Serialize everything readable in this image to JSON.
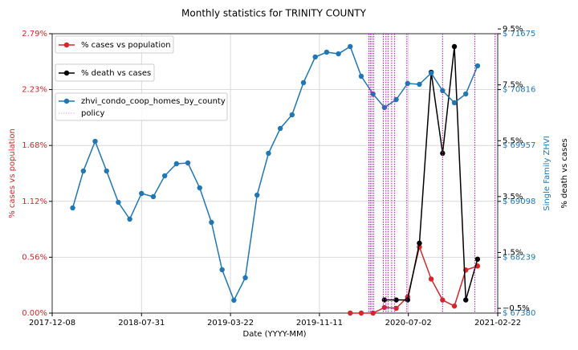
{
  "chart_data": {
    "type": "line",
    "title": "Monthly statistics for TRINITY COUNTY",
    "x_label": "Date (YYYY-MM)",
    "y_label": "% cases vs population",
    "y2_label": "Single Family ZHVI",
    "y3_label": "% death vs cases",
    "xlim": [
      "2017-12-08",
      "2021-02-22"
    ],
    "xticks": [
      "2017-12-08",
      "2018-07-31",
      "2019-03-22",
      "2019-11-11",
      "2020-07-02",
      "2021-02-22"
    ],
    "ylim": [
      0,
      2.79
    ],
    "yticks": [
      {
        "value": 0,
        "label": "0.00%"
      },
      {
        "value": 0.558,
        "label": "0.56%"
      },
      {
        "value": 1.116,
        "label": "1.12%"
      },
      {
        "value": 1.674,
        "label": "1.68%"
      },
      {
        "value": 2.232,
        "label": "2.23%"
      },
      {
        "value": 2.79,
        "label": "2.79%"
      }
    ],
    "y2lim": [
      67380,
      71675
    ],
    "y2ticks": [
      {
        "value": 67380,
        "label": "$ 67380"
      },
      {
        "value": 68239,
        "label": "$ 68239"
      },
      {
        "value": 69098,
        "label": "$ 69098"
      },
      {
        "value": 69957,
        "label": "$ 69957"
      },
      {
        "value": 70816,
        "label": "$ 70816"
      },
      {
        "value": 71675,
        "label": "$ 71675"
      }
    ],
    "y3lim": [
      -0.67,
      9.33
    ],
    "y3ticks": [
      {
        "value": -0.5,
        "label": "−0.5%"
      },
      {
        "value": 1.5,
        "label": "1.5%"
      },
      {
        "value": 3.5,
        "label": "3.5%"
      },
      {
        "value": 5.5,
        "label": "5.5%"
      },
      {
        "value": 7.5,
        "label": "7.5%"
      },
      {
        "value": 9.5,
        "label": "9.5%"
      }
    ],
    "grid": true,
    "series": [
      {
        "name": "% cases vs population",
        "color": "#d62728",
        "axis": "y",
        "x": [
          "2020-01-31",
          "2020-02-29",
          "2020-03-31",
          "2020-04-30",
          "2020-05-31",
          "2020-06-30",
          "2020-07-31",
          "2020-08-31",
          "2020-09-30",
          "2020-10-31",
          "2020-11-30",
          "2020-12-31"
        ],
        "values": [
          0,
          0,
          0,
          0.056,
          0.048,
          0.16,
          0.66,
          0.34,
          0.13,
          0.07,
          0.43,
          0.47
        ]
      },
      {
        "name": "% death vs cases",
        "color": "#000000",
        "axis": "y3",
        "x": [
          "2020-04-30",
          "2020-05-31",
          "2020-06-30",
          "2020-07-31",
          "2020-08-31",
          "2020-09-30",
          "2020-10-31",
          "2020-11-30",
          "2020-12-31"
        ],
        "values": [
          -0.2,
          -0.2,
          -0.2,
          1.83,
          7.95,
          5.05,
          8.87,
          -0.2,
          1.26
        ]
      },
      {
        "name": "zhvi_condo_coop_homes_by_county",
        "color": "#1f77b4",
        "axis": "y2",
        "x": [
          "2018-01-31",
          "2018-02-28",
          "2018-03-31",
          "2018-04-30",
          "2018-05-31",
          "2018-06-30",
          "2018-07-31",
          "2018-08-31",
          "2018-09-30",
          "2018-10-31",
          "2018-11-30",
          "2018-12-31",
          "2019-01-31",
          "2019-02-28",
          "2019-03-31",
          "2019-04-30",
          "2019-05-31",
          "2019-06-30",
          "2019-07-31",
          "2019-08-31",
          "2019-09-30",
          "2019-10-31",
          "2019-11-30",
          "2019-12-31",
          "2020-01-31",
          "2020-02-29",
          "2020-03-31",
          "2020-04-30",
          "2020-05-31",
          "2020-06-30",
          "2020-07-31",
          "2020-08-31",
          "2020-09-30",
          "2020-10-31",
          "2020-11-30",
          "2020-12-31"
        ],
        "values": [
          68997,
          69564,
          70021,
          69564,
          69083,
          68824,
          69219,
          69170,
          69490,
          69676,
          69688,
          69305,
          68775,
          68046,
          67577,
          67923,
          69194,
          69836,
          70219,
          70428,
          70922,
          71317,
          71391,
          71366,
          71478,
          71021,
          70749,
          70540,
          70663,
          70910,
          70897,
          71070,
          70799,
          70614,
          70749,
          71181
        ]
      },
      {
        "name": "policy",
        "color": "#cc00cc",
        "axis": "x",
        "x": [
          "2020-03-20",
          "2020-03-24",
          "2020-03-28",
          "2020-04-02",
          "2020-04-27",
          "2020-05-04",
          "2020-05-10",
          "2020-05-19",
          "2020-05-27",
          "2020-06-28",
          "2020-09-30",
          "2020-12-24",
          "2021-02-15"
        ]
      }
    ]
  }
}
